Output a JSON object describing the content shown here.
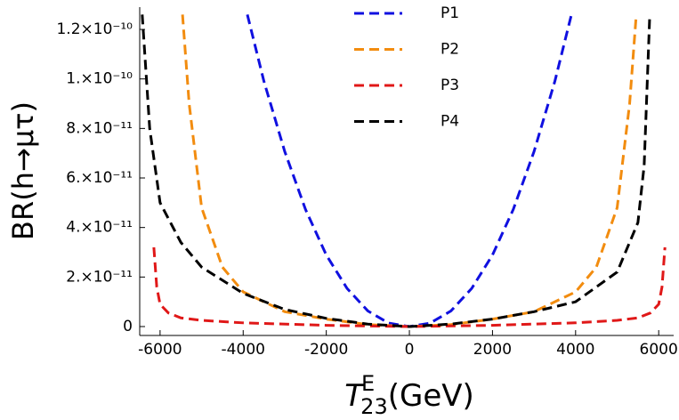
{
  "chart_data": {
    "type": "line",
    "y_label": "BR(h→μτ)",
    "x_label": {
      "symbol": "T",
      "subscript": "23",
      "superscript": "E",
      "unit": "(GeV)"
    },
    "xlim": [
      -6490,
      6360
    ],
    "ylim": [
      -3.6e-12,
      1.29e-10
    ],
    "xticks": [
      -6000,
      -4000,
      -2000,
      0,
      2000,
      4000,
      6000
    ],
    "yticks": [
      0,
      {
        "value": 2e-11,
        "label": "2.×10⁻¹¹"
      },
      {
        "value": 4e-11,
        "label": "4.×10⁻¹¹"
      },
      {
        "value": 6e-11,
        "label": "6.×10⁻¹¹"
      },
      {
        "value": 8e-11,
        "label": "8.×10⁻¹¹"
      },
      {
        "value": 1e-10,
        "label": "1.×10⁻¹⁰"
      },
      {
        "value": 1.2e-10,
        "label": "1.2×10⁻¹⁰"
      }
    ],
    "grid": false,
    "legend": "top-center",
    "series": [
      {
        "name": "P1",
        "color": "#1010e0",
        "x": [
          -3900,
          -3500,
          -3000,
          -2500,
          -2000,
          -1500,
          -1000,
          -500,
          0,
          500,
          1000,
          1500,
          2000,
          2500,
          3000,
          3500,
          3900
        ],
        "values": [
          1.26e-10,
          9.9e-11,
          7.07e-11,
          4.73e-11,
          2.89e-11,
          1.54e-11,
          6.3e-12,
          1.4e-12,
          0,
          1.4e-12,
          6.3e-12,
          1.54e-11,
          2.89e-11,
          4.73e-11,
          7.07e-11,
          9.9e-11,
          1.26e-10
        ]
      },
      {
        "name": "P2",
        "color": "#f28c0f",
        "x": [
          -5460,
          -5300,
          -5000,
          -4500,
          -4000,
          -3000,
          -2000,
          -1000,
          0,
          1000,
          2000,
          3000,
          4000,
          4500,
          5000,
          5300,
          5460
        ],
        "values": [
          1.26e-10,
          9e-11,
          4.8e-11,
          2.4e-11,
          1.4e-11,
          6e-12,
          3e-12,
          8e-13,
          0,
          8e-13,
          3e-12,
          6e-12,
          1.4e-11,
          2.4e-11,
          4.8e-11,
          9e-11,
          1.26e-10
        ]
      },
      {
        "name": "P3",
        "color": "#e01818",
        "x": [
          -6150,
          -6080,
          -6000,
          -5800,
          -5500,
          -5000,
          -4000,
          -2000,
          0,
          2000,
          4000,
          5000,
          5500,
          5800,
          6000,
          6080,
          6150
        ],
        "values": [
          3.2e-11,
          1.6e-11,
          9e-12,
          5.5e-12,
          3.5e-12,
          2.5e-12,
          1.5e-12,
          5e-13,
          0,
          5e-13,
          1.5e-12,
          2.5e-12,
          3.5e-12,
          5.5e-12,
          9e-12,
          1.6e-11,
          3.2e-11
        ]
      },
      {
        "name": "P4",
        "color": "#000000",
        "x": [
          -6430,
          -6250,
          -6000,
          -5500,
          -5000,
          -4000,
          -3000,
          -2000,
          -1000,
          0,
          1000,
          2000,
          3000,
          4000,
          5000,
          5500,
          5650,
          5785
        ],
        "values": [
          1.26e-10,
          8e-11,
          5e-11,
          3.4e-11,
          2.4e-11,
          1.34e-11,
          6.9e-12,
          3.3e-12,
          1e-12,
          0,
          1e-12,
          3e-12,
          6e-12,
          1e-11,
          2.2e-11,
          4.2e-11,
          6.5e-11,
          1.26e-10
        ]
      }
    ]
  }
}
